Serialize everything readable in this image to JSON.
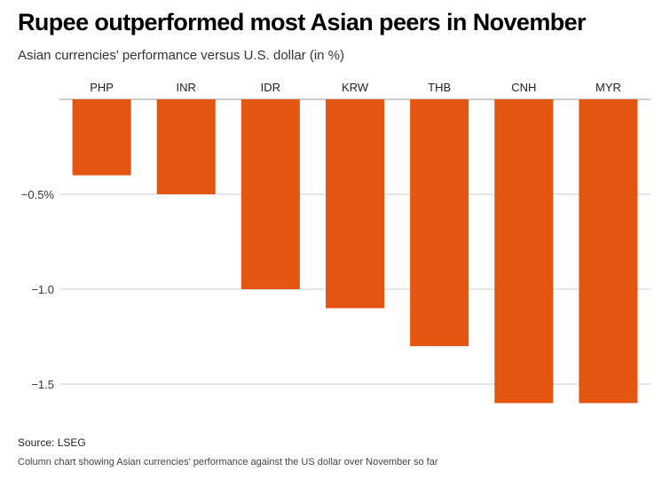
{
  "title": "Rupee outperformed most Asian peers in November",
  "subtitle": "Asian currencies' performance versus U.S. dollar (in %)",
  "source": "Source: LSEG",
  "caption": "Column chart showing Asian currencies' performance against the US dollar over November so far",
  "colors": {
    "bar": "#e55512",
    "grid": "#cccccc",
    "axis": "#999999"
  },
  "chart_data": {
    "type": "bar",
    "categories": [
      "PHP",
      "INR",
      "IDR",
      "KRW",
      "THB",
      "CNH",
      "MYR"
    ],
    "values": [
      -0.4,
      -0.5,
      -1.0,
      -1.1,
      -1.3,
      -1.6,
      -1.6
    ],
    "ylim": [
      -1.6,
      0
    ],
    "yticks": [
      -0.5,
      -1.0,
      -1.5
    ],
    "ytick_labels": [
      "−0.5%",
      "−1.0",
      "−1.5"
    ],
    "grid": true
  }
}
